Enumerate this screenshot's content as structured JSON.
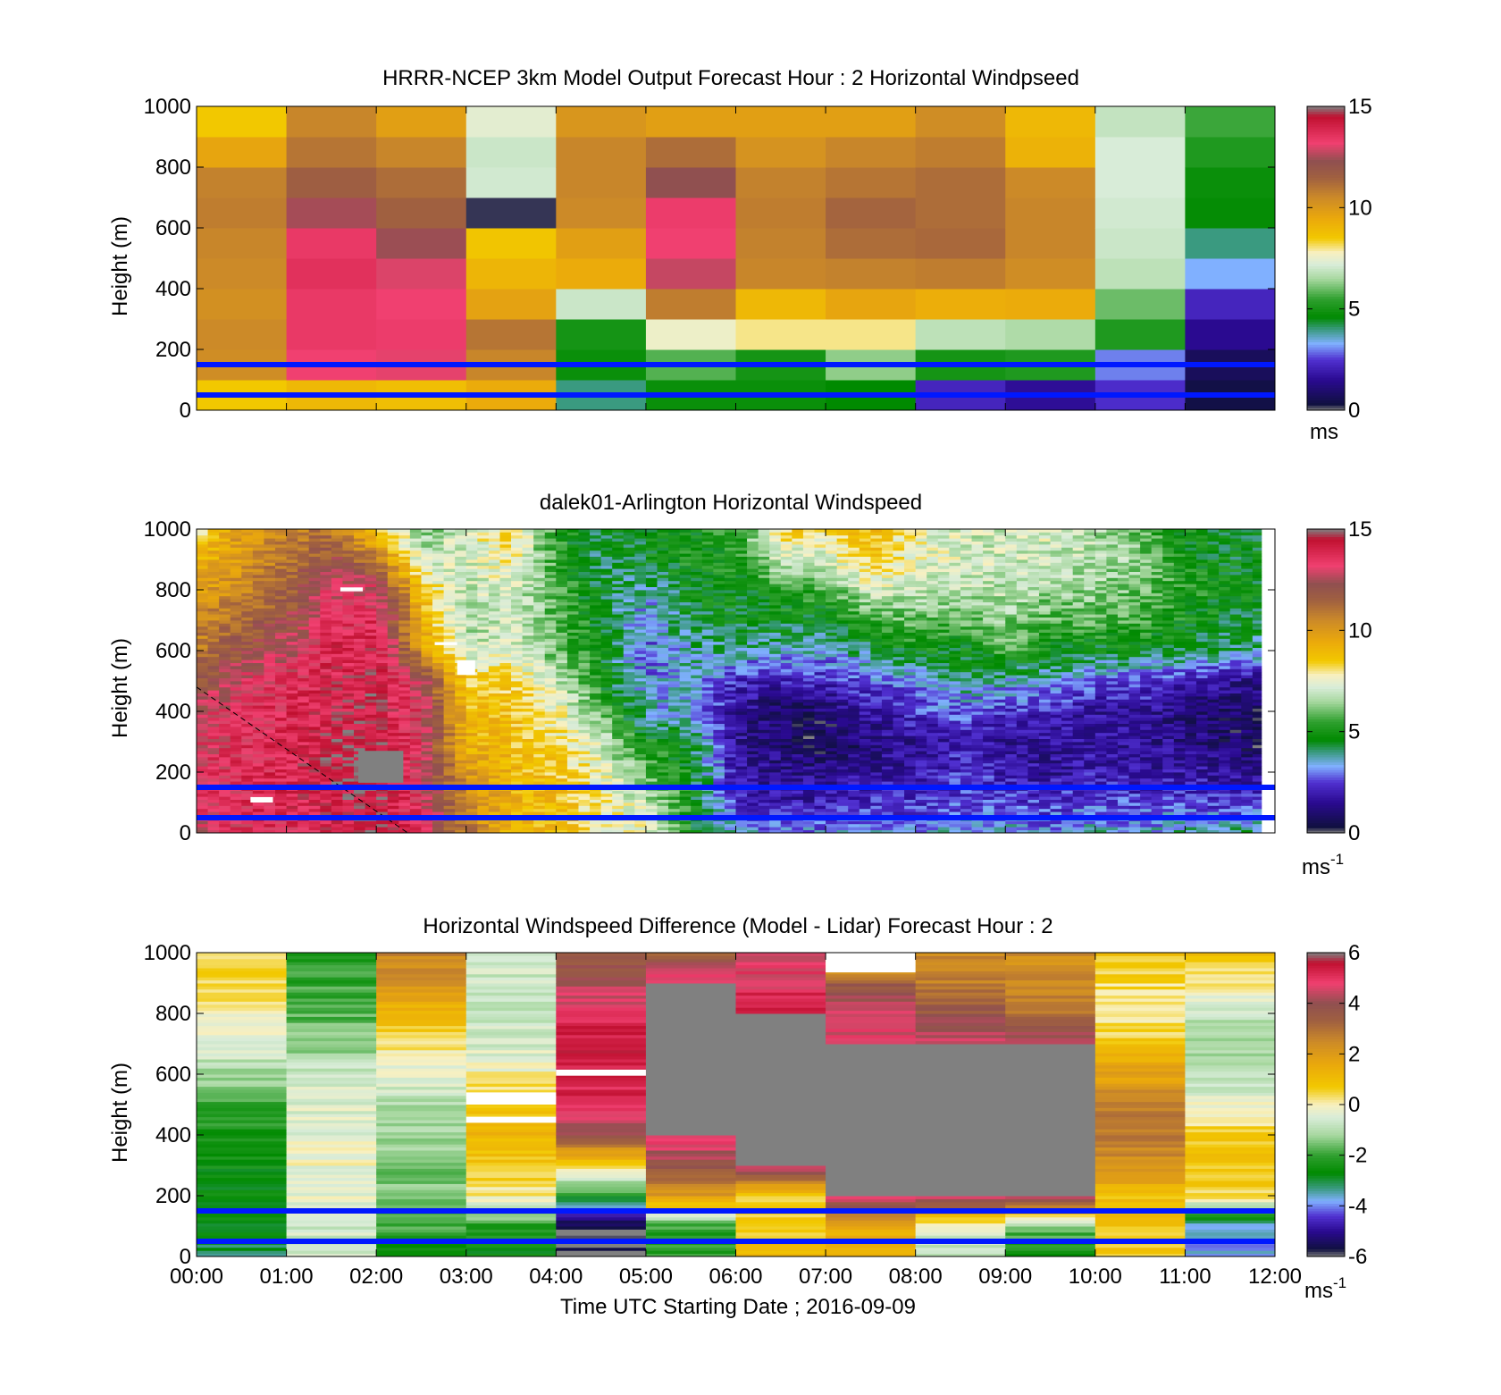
{
  "figure": {
    "xlabel": "Time UTC  Starting Date ; 2016-09-09"
  },
  "colormap": {
    "speed_stops": [
      {
        "v": 0,
        "c": "#808080"
      },
      {
        "v": 0.3,
        "c": "#101040"
      },
      {
        "v": 1.5,
        "c": "#2a0a90"
      },
      {
        "v": 2.5,
        "c": "#5030d0"
      },
      {
        "v": 3.3,
        "c": "#80b0ff"
      },
      {
        "v": 4.0,
        "c": "#3a9a80"
      },
      {
        "v": 4.6,
        "c": "#008a00"
      },
      {
        "v": 5.5,
        "c": "#2fa02f"
      },
      {
        "v": 6.5,
        "c": "#a8d8a0"
      },
      {
        "v": 7.2,
        "c": "#d8ecd8"
      },
      {
        "v": 7.8,
        "c": "#f8f0c0"
      },
      {
        "v": 8.5,
        "c": "#f2c800"
      },
      {
        "v": 9.5,
        "c": "#eaa80c"
      },
      {
        "v": 10.5,
        "c": "#cc8a28"
      },
      {
        "v": 11.5,
        "c": "#a06040"
      },
      {
        "v": 12.3,
        "c": "#905050"
      },
      {
        "v": 13.2,
        "c": "#f04070"
      },
      {
        "v": 14.5,
        "c": "#c01030"
      },
      {
        "v": 15,
        "c": "#808080"
      }
    ],
    "diff_stops": [
      {
        "v": -6,
        "c": "#808080"
      },
      {
        "v": -5.7,
        "c": "#101040"
      },
      {
        "v": -5,
        "c": "#2a0a90"
      },
      {
        "v": -4.4,
        "c": "#5030d0"
      },
      {
        "v": -3.8,
        "c": "#80b0ff"
      },
      {
        "v": -3.3,
        "c": "#3a9a80"
      },
      {
        "v": -2.7,
        "c": "#008a00"
      },
      {
        "v": -2,
        "c": "#2fa02f"
      },
      {
        "v": -1.2,
        "c": "#a8d8a0"
      },
      {
        "v": -0.5,
        "c": "#d8ecd8"
      },
      {
        "v": 0,
        "c": "#f8f0c0"
      },
      {
        "v": 0.7,
        "c": "#f2c800"
      },
      {
        "v": 1.6,
        "c": "#eaa80c"
      },
      {
        "v": 2.5,
        "c": "#cc8a28"
      },
      {
        "v": 3.3,
        "c": "#a06040"
      },
      {
        "v": 4.0,
        "c": "#905050"
      },
      {
        "v": 4.8,
        "c": "#f04070"
      },
      {
        "v": 5.6,
        "c": "#c01030"
      },
      {
        "v": 6,
        "c": "#808080"
      }
    ],
    "missing_color": "#808080",
    "line_color": "#0018ff"
  },
  "chart_data": [
    {
      "type": "heatmap",
      "title": "HRRR-NCEP 3km Model Output   Forecast Hour : 2 Horizontal Windpseed",
      "xlabel": "",
      "ylabel": "Height (m)",
      "ylim": [
        0,
        1000
      ],
      "yticks": [
        "0",
        "200",
        "400",
        "600",
        "800",
        "1000"
      ],
      "colorbar": {
        "ticks": [
          "0",
          "5",
          "10",
          "15"
        ],
        "unit": "ms",
        "range": [
          0,
          15
        ]
      },
      "reference_lines_m": [
        150,
        50
      ],
      "columns_hour": [
        0,
        1,
        2,
        3,
        4,
        5,
        6,
        7,
        8,
        9,
        10,
        11
      ],
      "cell_height_m": 100,
      "layers_m": [
        0,
        100,
        200,
        300,
        400,
        500,
        600,
        700,
        800,
        900
      ],
      "values": [
        [
          8.5,
          10.4,
          10.5,
          10.3,
          10.5,
          10.6,
          10.8,
          10.7,
          9.6,
          8.5
        ],
        [
          9.0,
          13.2,
          13.4,
          13.4,
          13.6,
          13.4,
          12.5,
          11.6,
          11.0,
          10.6
        ],
        [
          8.8,
          13.1,
          13.3,
          13.2,
          13.0,
          12.4,
          11.5,
          11.2,
          10.6,
          9.8
        ],
        [
          9.4,
          10.6,
          11.0,
          9.7,
          9.1,
          8.6,
          0.2,
          7.1,
          7.0,
          7.4
        ],
        [
          4.0,
          4.8,
          5.0,
          7.0,
          9.4,
          9.8,
          10.5,
          10.6,
          10.6,
          10.1
        ],
        [
          4.8,
          5.8,
          7.6,
          10.8,
          12.8,
          13.2,
          13.3,
          12.3,
          11.2,
          9.8
        ],
        [
          4.8,
          5.0,
          8.0,
          9.0,
          10.6,
          10.7,
          10.8,
          10.7,
          10.2,
          9.8
        ],
        [
          4.6,
          6.3,
          8.0,
          9.6,
          10.7,
          11.2,
          11.4,
          11.0,
          10.6,
          9.8
        ],
        [
          2.2,
          5.0,
          6.8,
          9.3,
          10.8,
          11.3,
          11.2,
          11.2,
          10.8,
          10.4
        ],
        [
          1.6,
          5.2,
          6.6,
          9.4,
          10.4,
          10.6,
          10.6,
          10.5,
          9.2,
          9.0
        ],
        [
          2.4,
          3.0,
          5.2,
          6.0,
          6.8,
          7.0,
          7.1,
          7.2,
          7.2,
          6.9
        ],
        [
          0.4,
          0.7,
          1.5,
          2.2,
          3.3,
          4.0,
          4.7,
          4.8,
          5.2,
          5.6
        ]
      ]
    },
    {
      "type": "heatmap",
      "title": "dalek01-Arlington  Horizontal Windspeed",
      "xlabel": "",
      "ylabel": "Height (m)",
      "ylim": [
        0,
        1000
      ],
      "yticks": [
        "0",
        "200",
        "400",
        "600",
        "800",
        "1000"
      ],
      "colorbar": {
        "ticks": [
          "0",
          "5",
          "10",
          "15"
        ],
        "unit": "ms-1",
        "range": [
          0,
          15
        ]
      },
      "reference_lines_m": [
        150,
        50
      ],
      "data_end_hour": 11.85,
      "profile_heights_m": [
        0,
        100,
        200,
        300,
        400,
        500,
        600,
        700,
        800,
        900,
        1000
      ],
      "profile_hours": [
        0.0,
        0.5,
        1.0,
        1.5,
        2.0,
        2.5,
        3.0,
        3.5,
        4.0,
        4.5,
        5.0,
        5.5,
        6.0,
        6.5,
        7.0,
        7.5,
        8.0,
        8.5,
        9.0,
        9.5,
        10.0,
        10.5,
        11.0,
        11.5,
        11.85
      ],
      "profiles": [
        [
          13.0,
          13.2,
          13.3,
          13.2,
          12.8,
          11.8,
          10.8,
          10.4,
          9.8,
          9.0,
          8.0
        ],
        [
          13.4,
          13.6,
          13.6,
          13.5,
          13.4,
          13.0,
          12.0,
          11.4,
          10.6,
          10.2,
          10.0
        ],
        [
          13.6,
          13.8,
          13.8,
          13.8,
          13.7,
          13.4,
          12.8,
          12.0,
          11.5,
          11.0,
          10.6
        ],
        [
          14.0,
          14.3,
          14.4,
          14.3,
          14.2,
          14.0,
          13.8,
          13.4,
          13.0,
          12.0,
          11.0
        ],
        [
          14.4,
          14.6,
          14.6,
          14.5,
          14.3,
          14.2,
          14.0,
          13.6,
          13.2,
          11.0,
          8.6
        ],
        [
          13.4,
          13.2,
          13.0,
          13.2,
          13.4,
          12.8,
          10.0,
          9.2,
          8.8,
          7.2,
          6.0
        ],
        [
          11.0,
          10.6,
          10.0,
          9.2,
          9.0,
          8.6,
          7.0,
          6.6,
          6.8,
          7.0,
          7.4
        ],
        [
          9.0,
          9.2,
          9.0,
          8.8,
          8.8,
          8.4,
          7.4,
          7.0,
          7.4,
          7.8,
          8.4
        ],
        [
          8.8,
          9.0,
          8.6,
          8.2,
          7.8,
          7.0,
          6.0,
          5.8,
          5.6,
          5.4,
          5.4
        ],
        [
          8.0,
          7.8,
          7.6,
          7.0,
          6.0,
          5.0,
          4.8,
          4.6,
          4.4,
          4.2,
          4.0
        ],
        [
          7.8,
          7.0,
          5.8,
          5.0,
          3.6,
          3.0,
          2.8,
          3.0,
          3.6,
          4.6,
          4.8
        ],
        [
          4.6,
          5.0,
          4.8,
          4.6,
          3.4,
          3.6,
          3.8,
          4.4,
          4.8,
          5.0,
          5.0
        ],
        [
          3.8,
          2.2,
          1.8,
          1.6,
          1.6,
          2.2,
          3.8,
          4.6,
          4.8,
          5.0,
          5.2
        ],
        [
          3.0,
          1.8,
          1.4,
          1.0,
          0.8,
          2.0,
          3.6,
          4.6,
          5.2,
          7.0,
          8.4
        ],
        [
          3.2,
          2.0,
          1.4,
          0.6,
          1.0,
          2.2,
          3.4,
          4.6,
          5.6,
          7.0,
          8.0
        ],
        [
          3.4,
          2.4,
          1.6,
          1.2,
          1.8,
          2.8,
          4.2,
          5.4,
          7.2,
          8.6,
          9.0
        ],
        [
          3.0,
          2.2,
          1.8,
          1.6,
          2.4,
          3.0,
          4.8,
          6.0,
          7.0,
          7.4,
          7.6
        ],
        [
          3.6,
          2.6,
          2.4,
          2.0,
          2.8,
          4.2,
          4.6,
          5.8,
          6.8,
          7.2,
          7.0
        ],
        [
          3.6,
          2.6,
          2.0,
          1.6,
          2.4,
          3.6,
          5.6,
          6.4,
          6.8,
          7.0,
          7.0
        ],
        [
          3.0,
          2.4,
          1.6,
          1.6,
          2.2,
          3.4,
          4.8,
          5.6,
          6.6,
          7.0,
          7.2
        ],
        [
          3.6,
          2.8,
          2.0,
          1.8,
          1.6,
          2.8,
          4.6,
          5.8,
          6.4,
          6.8,
          6.6
        ],
        [
          3.4,
          2.4,
          1.8,
          1.6,
          1.8,
          2.6,
          4.6,
          5.6,
          6.0,
          6.4,
          5.8
        ],
        [
          3.8,
          2.6,
          1.8,
          1.4,
          1.2,
          2.0,
          4.4,
          5.0,
          5.2,
          5.0,
          4.8
        ],
        [
          4.0,
          2.2,
          1.6,
          1.0,
          0.8,
          1.6,
          4.0,
          4.6,
          4.8,
          4.6,
          4.6
        ],
        [
          4.2,
          2.4,
          1.6,
          0.6,
          0.8,
          1.4,
          3.8,
          4.4,
          4.6,
          4.6,
          4.6
        ]
      ],
      "missing_blocks": [
        {
          "h0": 1.8,
          "h1": 2.3,
          "z0": 165,
          "z1": 270
        }
      ],
      "blank_marks": [
        {
          "h0": 0.6,
          "h1": 0.85,
          "z0": 100,
          "z1": 118
        },
        {
          "h0": 1.6,
          "h1": 1.85,
          "z0": 795,
          "z1": 808
        },
        {
          "h0": 2.65,
          "h1": 2.9,
          "z0": 618,
          "z1": 628
        },
        {
          "h0": 2.9,
          "h1": 3.1,
          "z0": 520,
          "z1": 568
        }
      ],
      "dashed_line": {
        "h0": 0.0,
        "z0": 480,
        "h1": 2.35,
        "z1": 0
      }
    },
    {
      "type": "heatmap",
      "title": "Horizontal Windspeed Difference (Model - Lidar) Forecast Hour : 2",
      "xlabel": "Time UTC  Starting Date ; 2016-09-09",
      "ylabel": "Height (m)",
      "ylim": [
        0,
        1000
      ],
      "yticks": [
        "0",
        "200",
        "400",
        "600",
        "800",
        "1000"
      ],
      "xticks": [
        "00:00",
        "01:00",
        "02:00",
        "03:00",
        "04:00",
        "05:00",
        "06:00",
        "07:00",
        "08:00",
        "09:00",
        "10:00",
        "11:00",
        "12:00"
      ],
      "colorbar": {
        "ticks": [
          "-6",
          "-4",
          "-2",
          "0",
          "2",
          "4",
          "6"
        ],
        "unit": "ms-1",
        "range": [
          -6,
          6
        ]
      },
      "reference_lines_m": [
        150,
        50
      ],
      "columns_hour": [
        0,
        1,
        2,
        3,
        4,
        5,
        6,
        7,
        8,
        9,
        10,
        11
      ],
      "profile_heights_m": [
        0,
        100,
        200,
        300,
        400,
        500,
        600,
        700,
        800,
        900,
        1000
      ],
      "profiles": [
        [
          -3.0,
          -2.8,
          -2.6,
          -2.5,
          -2.3,
          -2.0,
          -1.2,
          -0.4,
          0.0,
          0.4,
          0.6
        ],
        [
          -0.6,
          -0.6,
          -0.3,
          -0.2,
          -0.3,
          -0.5,
          -0.6,
          -1.4,
          -1.8,
          -2.0,
          -2.2
        ],
        [
          -2.6,
          -1.8,
          -1.6,
          -1.4,
          -1.3,
          -1.0,
          -0.4,
          0.3,
          1.2,
          2.2,
          2.6
        ],
        [
          -2.6,
          -2.2,
          0.1,
          0.8,
          1.2,
          0.8,
          0.0,
          -0.6,
          -0.8,
          -0.7,
          -0.6
        ],
        [
          -6.0,
          -5.8,
          -2.4,
          0.6,
          3.8,
          5.0,
          5.4,
          5.6,
          5.0,
          4.2,
          3.6
        ],
        [
          -2.2,
          -2.0,
          2.0,
          3.8,
          5.0,
          null,
          null,
          null,
          null,
          5.2,
          3.4
        ],
        [
          1.2,
          0.6,
          0.8,
          4.6,
          null,
          null,
          null,
          null,
          5.6,
          4.8,
          4.6
        ],
        [
          1.0,
          1.4,
          4.8,
          null,
          null,
          null,
          null,
          4.8,
          4.4,
          3.6,
          0.0
        ],
        [
          -0.8,
          -0.5,
          5.0,
          null,
          null,
          null,
          null,
          4.6,
          3.6,
          2.8,
          2.4
        ],
        [
          -2.6,
          -1.6,
          4.8,
          null,
          null,
          null,
          null,
          4.4,
          3.0,
          2.4,
          2.4
        ],
        [
          0.6,
          0.8,
          1.0,
          2.2,
          3.0,
          2.6,
          1.8,
          0.8,
          0.0,
          0.4,
          0.8
        ],
        [
          -3.8,
          -3.6,
          0.4,
          0.8,
          0.6,
          -0.2,
          -1.0,
          -1.2,
          -0.8,
          0.2,
          0.8
        ]
      ],
      "blank_marks": [
        {
          "h0": 7.0,
          "h1": 8.0,
          "z0": 935,
          "z1": 1000
        },
        {
          "h0": 3.0,
          "h1": 4.0,
          "z0": 500,
          "z1": 540
        },
        {
          "h0": 3.0,
          "h1": 4.0,
          "z0": 440,
          "z1": 460
        },
        {
          "h0": 4.0,
          "h1": 5.0,
          "z0": 595,
          "z1": 615
        }
      ]
    }
  ]
}
